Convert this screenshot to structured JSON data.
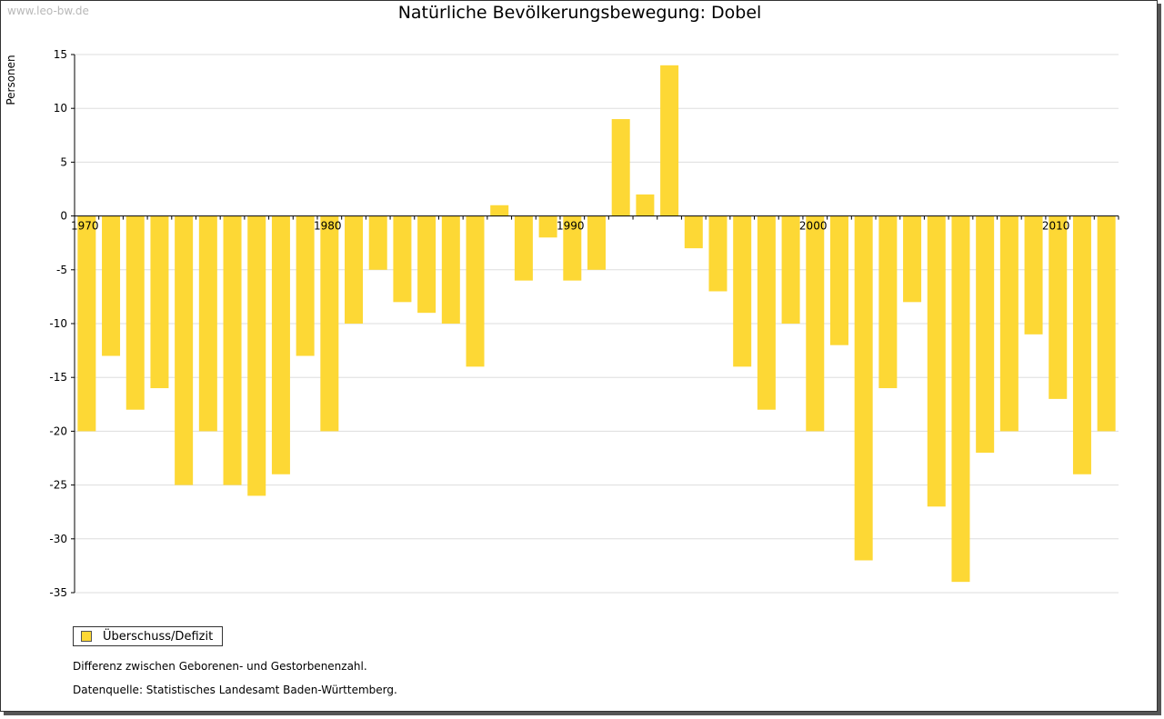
{
  "watermark": "www.leo-bw.de",
  "colors": {
    "bar": "#fdd835",
    "grid": "#dddddd",
    "axis": "#000000"
  },
  "legend": {
    "label": "Überschuss/Defizit"
  },
  "notes": {
    "line1": "Differenz zwischen Geborenen- und Gestorbenenzahl.",
    "line2": "Datenquelle: Statistisches Landesamt Baden-Württemberg."
  },
  "chart_data": {
    "type": "bar",
    "title": "Natürliche Bevölkerungsbewegung: Dobel",
    "ylabel": "Personen",
    "xlabel": "",
    "ylim": [
      -35,
      15
    ],
    "yticks": [
      15,
      10,
      5,
      0,
      -5,
      -10,
      -15,
      -20,
      -25,
      -30,
      -35
    ],
    "xtick_labels": [
      "1970",
      "1980",
      "1990",
      "2000",
      "2010"
    ],
    "categories": [
      1970,
      1971,
      1972,
      1973,
      1974,
      1975,
      1976,
      1977,
      1978,
      1979,
      1980,
      1981,
      1982,
      1983,
      1984,
      1985,
      1986,
      1987,
      1988,
      1989,
      1990,
      1991,
      1992,
      1993,
      1994,
      1995,
      1996,
      1997,
      1998,
      1999,
      2000,
      2001,
      2002,
      2003,
      2004,
      2005,
      2006,
      2007,
      2008,
      2009,
      2010,
      2011,
      2012
    ],
    "series": [
      {
        "name": "Überschuss/Defizit",
        "values": [
          -20,
          -13,
          -18,
          -16,
          -25,
          -20,
          -25,
          -26,
          -24,
          -13,
          -20,
          -10,
          -5,
          -8,
          -9,
          -10,
          -14,
          1,
          -6,
          -2,
          -6,
          -5,
          9,
          2,
          14,
          -3,
          -7,
          -14,
          -18,
          -10,
          -20,
          -12,
          -32,
          -16,
          -8,
          -27,
          -34,
          -22,
          -20,
          -11,
          -17,
          -24,
          -20
        ]
      }
    ]
  }
}
